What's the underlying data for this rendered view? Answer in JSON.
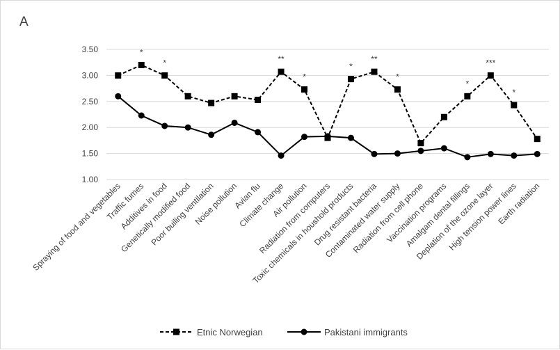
{
  "panel_label": "A",
  "chart_data": {
    "type": "line",
    "title": "",
    "xlabel": "",
    "ylabel": "",
    "ylim": [
      1.0,
      3.5
    ],
    "y_ticks": [
      "1.00",
      "1.50",
      "2.00",
      "2.50",
      "3.00",
      "3.50"
    ],
    "grid": "horizontal",
    "legend_position": "bottom",
    "categories": [
      "Spraying of food and vegetables",
      "Traffic fumes",
      "Additives in food",
      "Genetically modified food",
      "Poor builing ventilation",
      "Noise pollution",
      "Avian flu",
      "Climate change",
      "Air pollution",
      "Radiation from computers",
      "Toxic chemicals in houshold products",
      "Drug resistant bacteria",
      "Contaminated water supply",
      "Radiation from cell phone",
      "Vaccination programs",
      "Amalgam dental fillings",
      "Deplation of the ozone layer",
      "High tension power lines",
      "Earth radiation"
    ],
    "series": [
      {
        "name": "Etnic Norwegian",
        "style": "dashed",
        "marker": "square",
        "color": "#000000",
        "values": [
          3.0,
          3.2,
          3.0,
          2.6,
          2.47,
          2.6,
          2.53,
          3.07,
          2.73,
          1.8,
          2.93,
          3.07,
          2.73,
          1.7,
          2.2,
          2.6,
          3.0,
          2.43,
          1.78
        ]
      },
      {
        "name": "Pakistani immigrants",
        "style": "solid",
        "marker": "circle",
        "color": "#000000",
        "values": [
          2.6,
          2.23,
          2.03,
          2.0,
          1.86,
          2.09,
          1.91,
          1.46,
          1.82,
          1.83,
          1.8,
          1.49,
          1.5,
          1.55,
          1.6,
          1.43,
          1.49,
          1.46,
          1.49
        ]
      }
    ],
    "annotations": [
      {
        "category_index": 1,
        "text": "*"
      },
      {
        "category_index": 2,
        "text": "*"
      },
      {
        "category_index": 7,
        "text": "**"
      },
      {
        "category_index": 8,
        "text": "*"
      },
      {
        "category_index": 10,
        "text": "*"
      },
      {
        "category_index": 11,
        "text": "**"
      },
      {
        "category_index": 12,
        "text": "*"
      },
      {
        "category_index": 15,
        "text": "*"
      },
      {
        "category_index": 16,
        "text": "***"
      },
      {
        "category_index": 17,
        "text": "*"
      }
    ]
  }
}
